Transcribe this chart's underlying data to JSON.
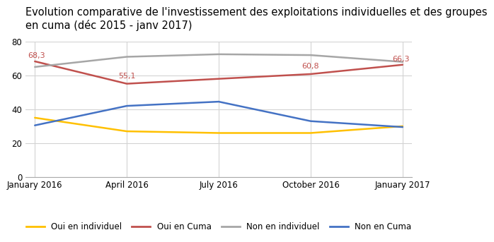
{
  "title": "Evolution comparative de l'investissement des exploitations individuelles et des groupes\nen cuma (déc 2015 - janv 2017)",
  "x_labels": [
    "January 2016",
    "April 2016",
    "July 2016",
    "October 2016",
    "January 2017"
  ],
  "x_positions": [
    0,
    1,
    2,
    3,
    4
  ],
  "series": [
    {
      "label": "Oui en individuel",
      "values": [
        35.0,
        27.0,
        26.0,
        26.0,
        30.0
      ],
      "color": "#FFC000",
      "linewidth": 1.8
    },
    {
      "label": "Oui en Cuma",
      "values": [
        68.3,
        55.1,
        58.0,
        60.8,
        66.3
      ],
      "color": "#C0504D",
      "linewidth": 1.8,
      "annotations": {
        "0": "68,3",
        "1": "55,1",
        "3": "60,8",
        "4": "66,3"
      }
    },
    {
      "label": "Non en individuel",
      "values": [
        65.0,
        71.0,
        72.5,
        72.0,
        68.0
      ],
      "color": "#A6A6A6",
      "linewidth": 1.8
    },
    {
      "label": "Non en Cuma",
      "values": [
        30.5,
        42.0,
        44.5,
        33.0,
        29.5
      ],
      "color": "#4472C4",
      "linewidth": 1.8
    }
  ],
  "ylim": [
    0,
    80
  ],
  "yticks": [
    0,
    20,
    40,
    60,
    80
  ],
  "annotation_color": "#C0504D",
  "annotation_fontsize": 8,
  "grid_color": "#D3D3D3",
  "background_color": "#FFFFFF",
  "title_fontsize": 10.5,
  "legend_fontsize": 8.5,
  "tick_fontsize": 8.5
}
